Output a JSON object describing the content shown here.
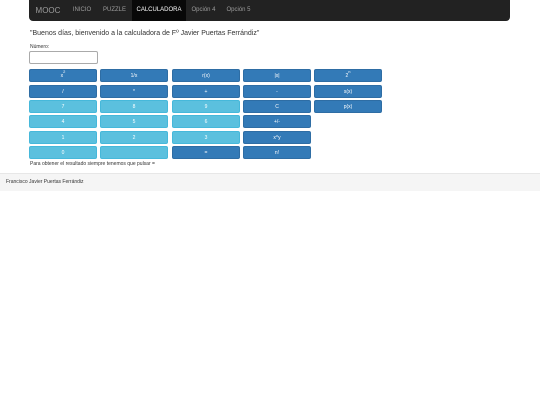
{
  "navbar": {
    "brand": "MOOC",
    "items": [
      {
        "label": "INICIO",
        "active": false
      },
      {
        "label": "PUZZLE",
        "active": false
      },
      {
        "label": "CALCULADORA",
        "active": true
      },
      {
        "label": "Opción 4",
        "active": false
      },
      {
        "label": "Opción 5",
        "active": false
      }
    ]
  },
  "main": {
    "greeting": "\"Buenos días, bienvenido a la calculadora de Fº Javier Puertas Ferrándiz\"",
    "number_label": "Número:",
    "number_value": "",
    "number_placeholder": "",
    "keys": [
      {
        "label": "x",
        "sup": "2",
        "style": "primary"
      },
      {
        "label": "1/x",
        "sup": "",
        "style": "primary"
      },
      {
        "label": "r(x)",
        "sup": "",
        "style": "primary"
      },
      {
        "label": "|x|",
        "sup": "",
        "style": "primary"
      },
      {
        "label": "2",
        "sup": "n",
        "style": "primary"
      },
      {
        "label": "/",
        "sup": "",
        "style": "primary"
      },
      {
        "label": "*",
        "sup": "",
        "style": "primary"
      },
      {
        "label": "+",
        "sup": "",
        "style": "primary"
      },
      {
        "label": "-",
        "sup": "",
        "style": "primary"
      },
      {
        "label": "s(x)",
        "sup": "",
        "style": "primary"
      },
      {
        "label": "7",
        "sup": "",
        "style": "info"
      },
      {
        "label": "8",
        "sup": "",
        "style": "info"
      },
      {
        "label": "9",
        "sup": "",
        "style": "info"
      },
      {
        "label": "C",
        "sup": "",
        "style": "primary"
      },
      {
        "label": "p(x)",
        "sup": "",
        "style": "primary"
      },
      {
        "label": "4",
        "sup": "",
        "style": "info"
      },
      {
        "label": "5",
        "sup": "",
        "style": "info"
      },
      {
        "label": "6",
        "sup": "",
        "style": "info"
      },
      {
        "label": "+/-",
        "sup": "",
        "style": "primary"
      },
      {
        "label": "1",
        "sup": "",
        "style": "info"
      },
      {
        "label": "2",
        "sup": "",
        "style": "info"
      },
      {
        "label": "3",
        "sup": "",
        "style": "info"
      },
      {
        "label": "x^y",
        "sup": "",
        "style": "primary"
      },
      {
        "label": "0",
        "sup": "",
        "style": "info"
      },
      {
        "label": "",
        "sup": "",
        "style": "info"
      },
      {
        "label": "=",
        "sup": "",
        "style": "primary"
      },
      {
        "label": "n!",
        "sup": "",
        "style": "primary"
      }
    ],
    "hint": "Para obtener el resultado siempre tenemos que pulsar ="
  },
  "footer": {
    "text": "Francisco Javier Puertas Ferrándiz"
  },
  "colors": {
    "navbar_bg": "#222222",
    "primary": "#337ab7",
    "info": "#5bc0de",
    "footer_bg": "#f5f5f5"
  }
}
